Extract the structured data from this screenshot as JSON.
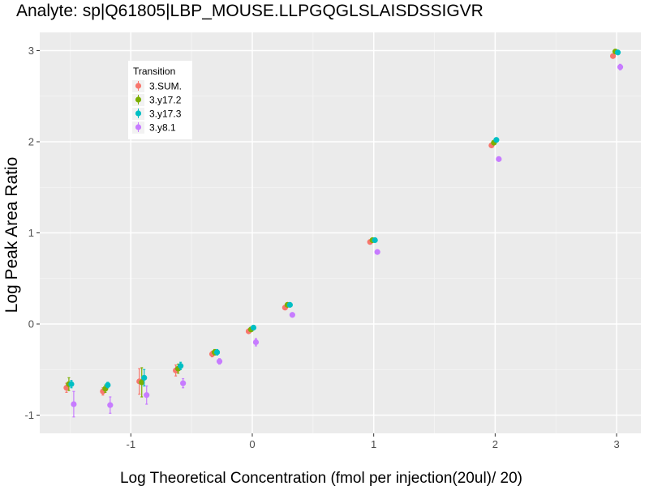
{
  "chart_data": {
    "type": "scatter",
    "title": "Analyte: sp|Q61805|LBP_MOUSE.LLPGQGLSLAISDSSIGVR",
    "xlabel": "Log Theoretical Concentration (fmol per injection(20ul)/ 20)",
    "ylabel": "Log Peak Area Ratio",
    "xlim": [
      -1.75,
      3.2
    ],
    "ylim": [
      -1.2,
      3.2
    ],
    "x_ticks": [
      -1,
      0,
      1,
      2,
      3
    ],
    "x_tick_labels": [
      "-1",
      "0",
      "1",
      "2",
      "3"
    ],
    "y_ticks": [
      -1,
      0,
      1,
      2,
      3
    ],
    "y_tick_labels": [
      "-1",
      "0",
      "1",
      "2",
      "3"
    ],
    "grid": true,
    "legend": {
      "title": "Transition",
      "position": "top-left"
    },
    "series": [
      {
        "name": "3.SUM.",
        "color": "#F8766D",
        "dodge": -0.03,
        "x": [
          -1.5,
          -1.2,
          -0.9,
          -0.6,
          -0.3,
          0,
          0.3,
          1,
          2,
          3
        ],
        "y": [
          -0.7,
          -0.74,
          -0.63,
          -0.51,
          -0.33,
          -0.08,
          0.18,
          0.9,
          1.96,
          2.94
        ],
        "err": [
          0.05,
          0.04,
          0.14,
          0.06,
          0.03,
          0.02,
          0.02,
          0.01,
          0.02,
          0.02
        ]
      },
      {
        "name": "3.y17.2",
        "color": "#7CAE00",
        "dodge": -0.01,
        "x": [
          -1.5,
          -1.2,
          -0.9,
          -0.6,
          -0.3,
          0,
          0.3,
          1,
          2,
          3
        ],
        "y": [
          -0.66,
          -0.71,
          -0.64,
          -0.49,
          -0.31,
          -0.06,
          0.21,
          0.92,
          1.99,
          2.99
        ],
        "err": [
          0.07,
          0.04,
          0.16,
          0.05,
          0.03,
          0.02,
          0.02,
          0.01,
          0.01,
          0.01
        ]
      },
      {
        "name": "3.y17.3",
        "color": "#00BFC4",
        "dodge": 0.01,
        "x": [
          -1.5,
          -1.2,
          -0.9,
          -0.6,
          -0.3,
          0,
          0.3,
          1,
          2,
          3
        ],
        "y": [
          -0.66,
          -0.67,
          -0.59,
          -0.46,
          -0.31,
          -0.04,
          0.21,
          0.92,
          2.02,
          2.98
        ],
        "err": [
          0.04,
          0.03,
          0.09,
          0.04,
          0.03,
          0.02,
          0.02,
          0.01,
          0.01,
          0.01
        ]
      },
      {
        "name": "3.y8.1",
        "color": "#C77CFF",
        "dodge": 0.03,
        "x": [
          -1.5,
          -1.2,
          -0.9,
          -0.6,
          -0.3,
          0,
          0.3,
          1,
          2,
          3
        ],
        "y": [
          -0.88,
          -0.89,
          -0.78,
          -0.65,
          -0.41,
          -0.2,
          0.1,
          0.79,
          1.81,
          2.82
        ],
        "err": [
          0.14,
          0.09,
          0.1,
          0.05,
          0.03,
          0.04,
          0.02,
          0.02,
          0.02,
          0.03
        ]
      }
    ]
  }
}
